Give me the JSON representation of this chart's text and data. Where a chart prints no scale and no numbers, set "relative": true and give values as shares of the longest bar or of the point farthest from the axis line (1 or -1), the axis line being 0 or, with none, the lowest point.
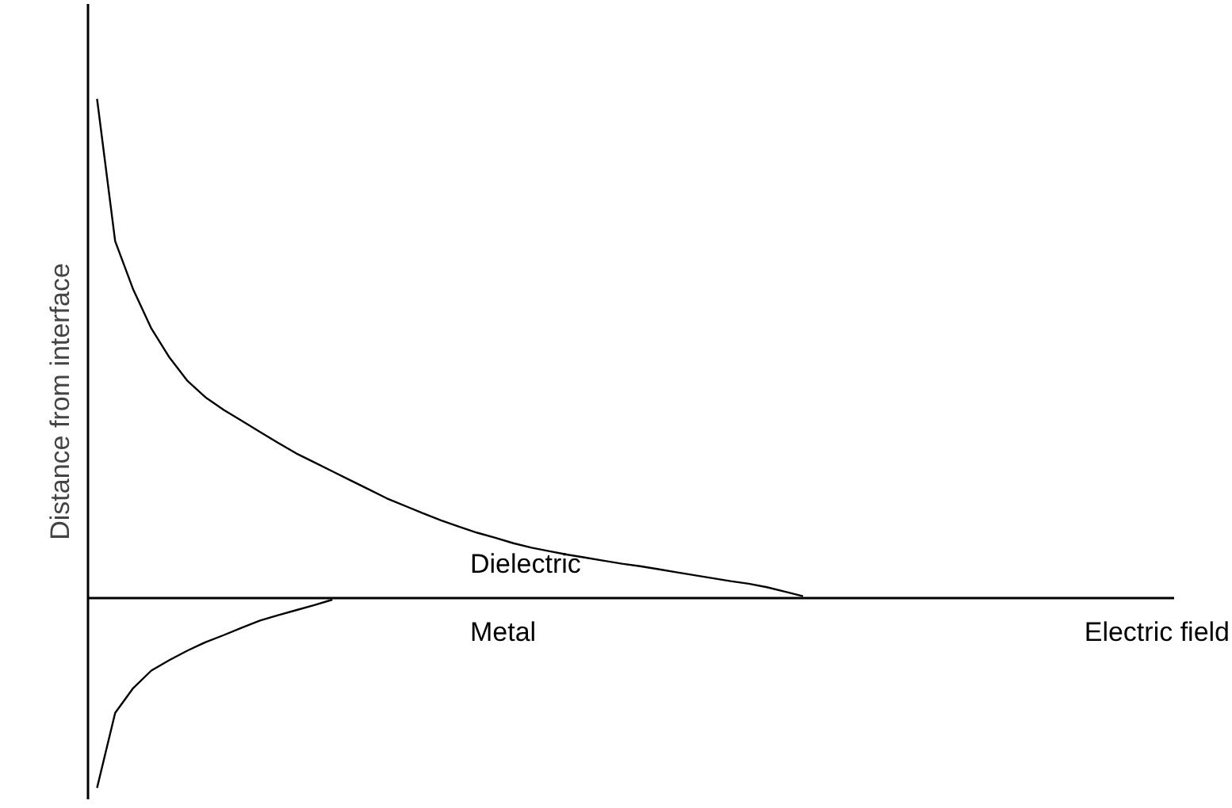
{
  "chart_data": {
    "type": "line",
    "relative": true,
    "xlabel": "Electric field",
    "ylabel": "Distance from interface",
    "categories": [
      null,
      null,
      null,
      null,
      null,
      null,
      null,
      null,
      null,
      null,
      null,
      null,
      null,
      null,
      null,
      null,
      null,
      null,
      null,
      null,
      null,
      null,
      null,
      null,
      null,
      null,
      null,
      null,
      null,
      null,
      null,
      null,
      null,
      null,
      null,
      null,
      null,
      null,
      null,
      null,
      null,
      null,
      null,
      null,
      null,
      null,
      null,
      null,
      null,
      null,
      null,
      null,
      null,
      null,
      null,
      null,
      null,
      null,
      null,
      null
    ],
    "marker": "none",
    "line_style": "solid",
    "series": [
      {
        "color": "#000000",
        "values": [
          1.0,
          0.715,
          0.618,
          0.54,
          0.482,
          0.435,
          0.402,
          0.377,
          0.355,
          0.333,
          0.311,
          0.29,
          0.272,
          0.254,
          0.236,
          0.218,
          0.2,
          0.185,
          0.17,
          0.156,
          0.143,
          0.131,
          0.121,
          0.11,
          0.101,
          0.094,
          0.087,
          0.081,
          0.075,
          0.069,
          0.064,
          0.058,
          0.052,
          0.046,
          0.04,
          0.034,
          0.029,
          0.022,
          0.013,
          0.004,
          null,
          null,
          null,
          null,
          null,
          null,
          null,
          null,
          null,
          null,
          null,
          null,
          null,
          null,
          null,
          null,
          null,
          null,
          null,
          null
        ]
      },
      {
        "color": "#000000",
        "values": [
          -0.38,
          -0.23,
          -0.18,
          -0.145,
          -0.124,
          -0.105,
          -0.088,
          -0.074,
          -0.059,
          -0.045,
          -0.034,
          -0.024,
          -0.014,
          -0.003,
          null,
          null,
          null,
          null,
          null,
          null,
          null,
          null,
          null,
          null,
          null,
          null,
          null,
          null,
          null,
          null,
          null,
          null,
          null,
          null,
          null,
          null,
          null,
          null,
          null,
          null,
          null,
          null,
          null,
          null,
          null,
          null,
          null,
          null,
          null,
          null,
          null,
          null,
          null,
          null,
          null,
          null,
          null,
          null,
          null,
          null
        ]
      }
    ],
    "annotations": [
      "Dielectric",
      "Metal"
    ]
  }
}
